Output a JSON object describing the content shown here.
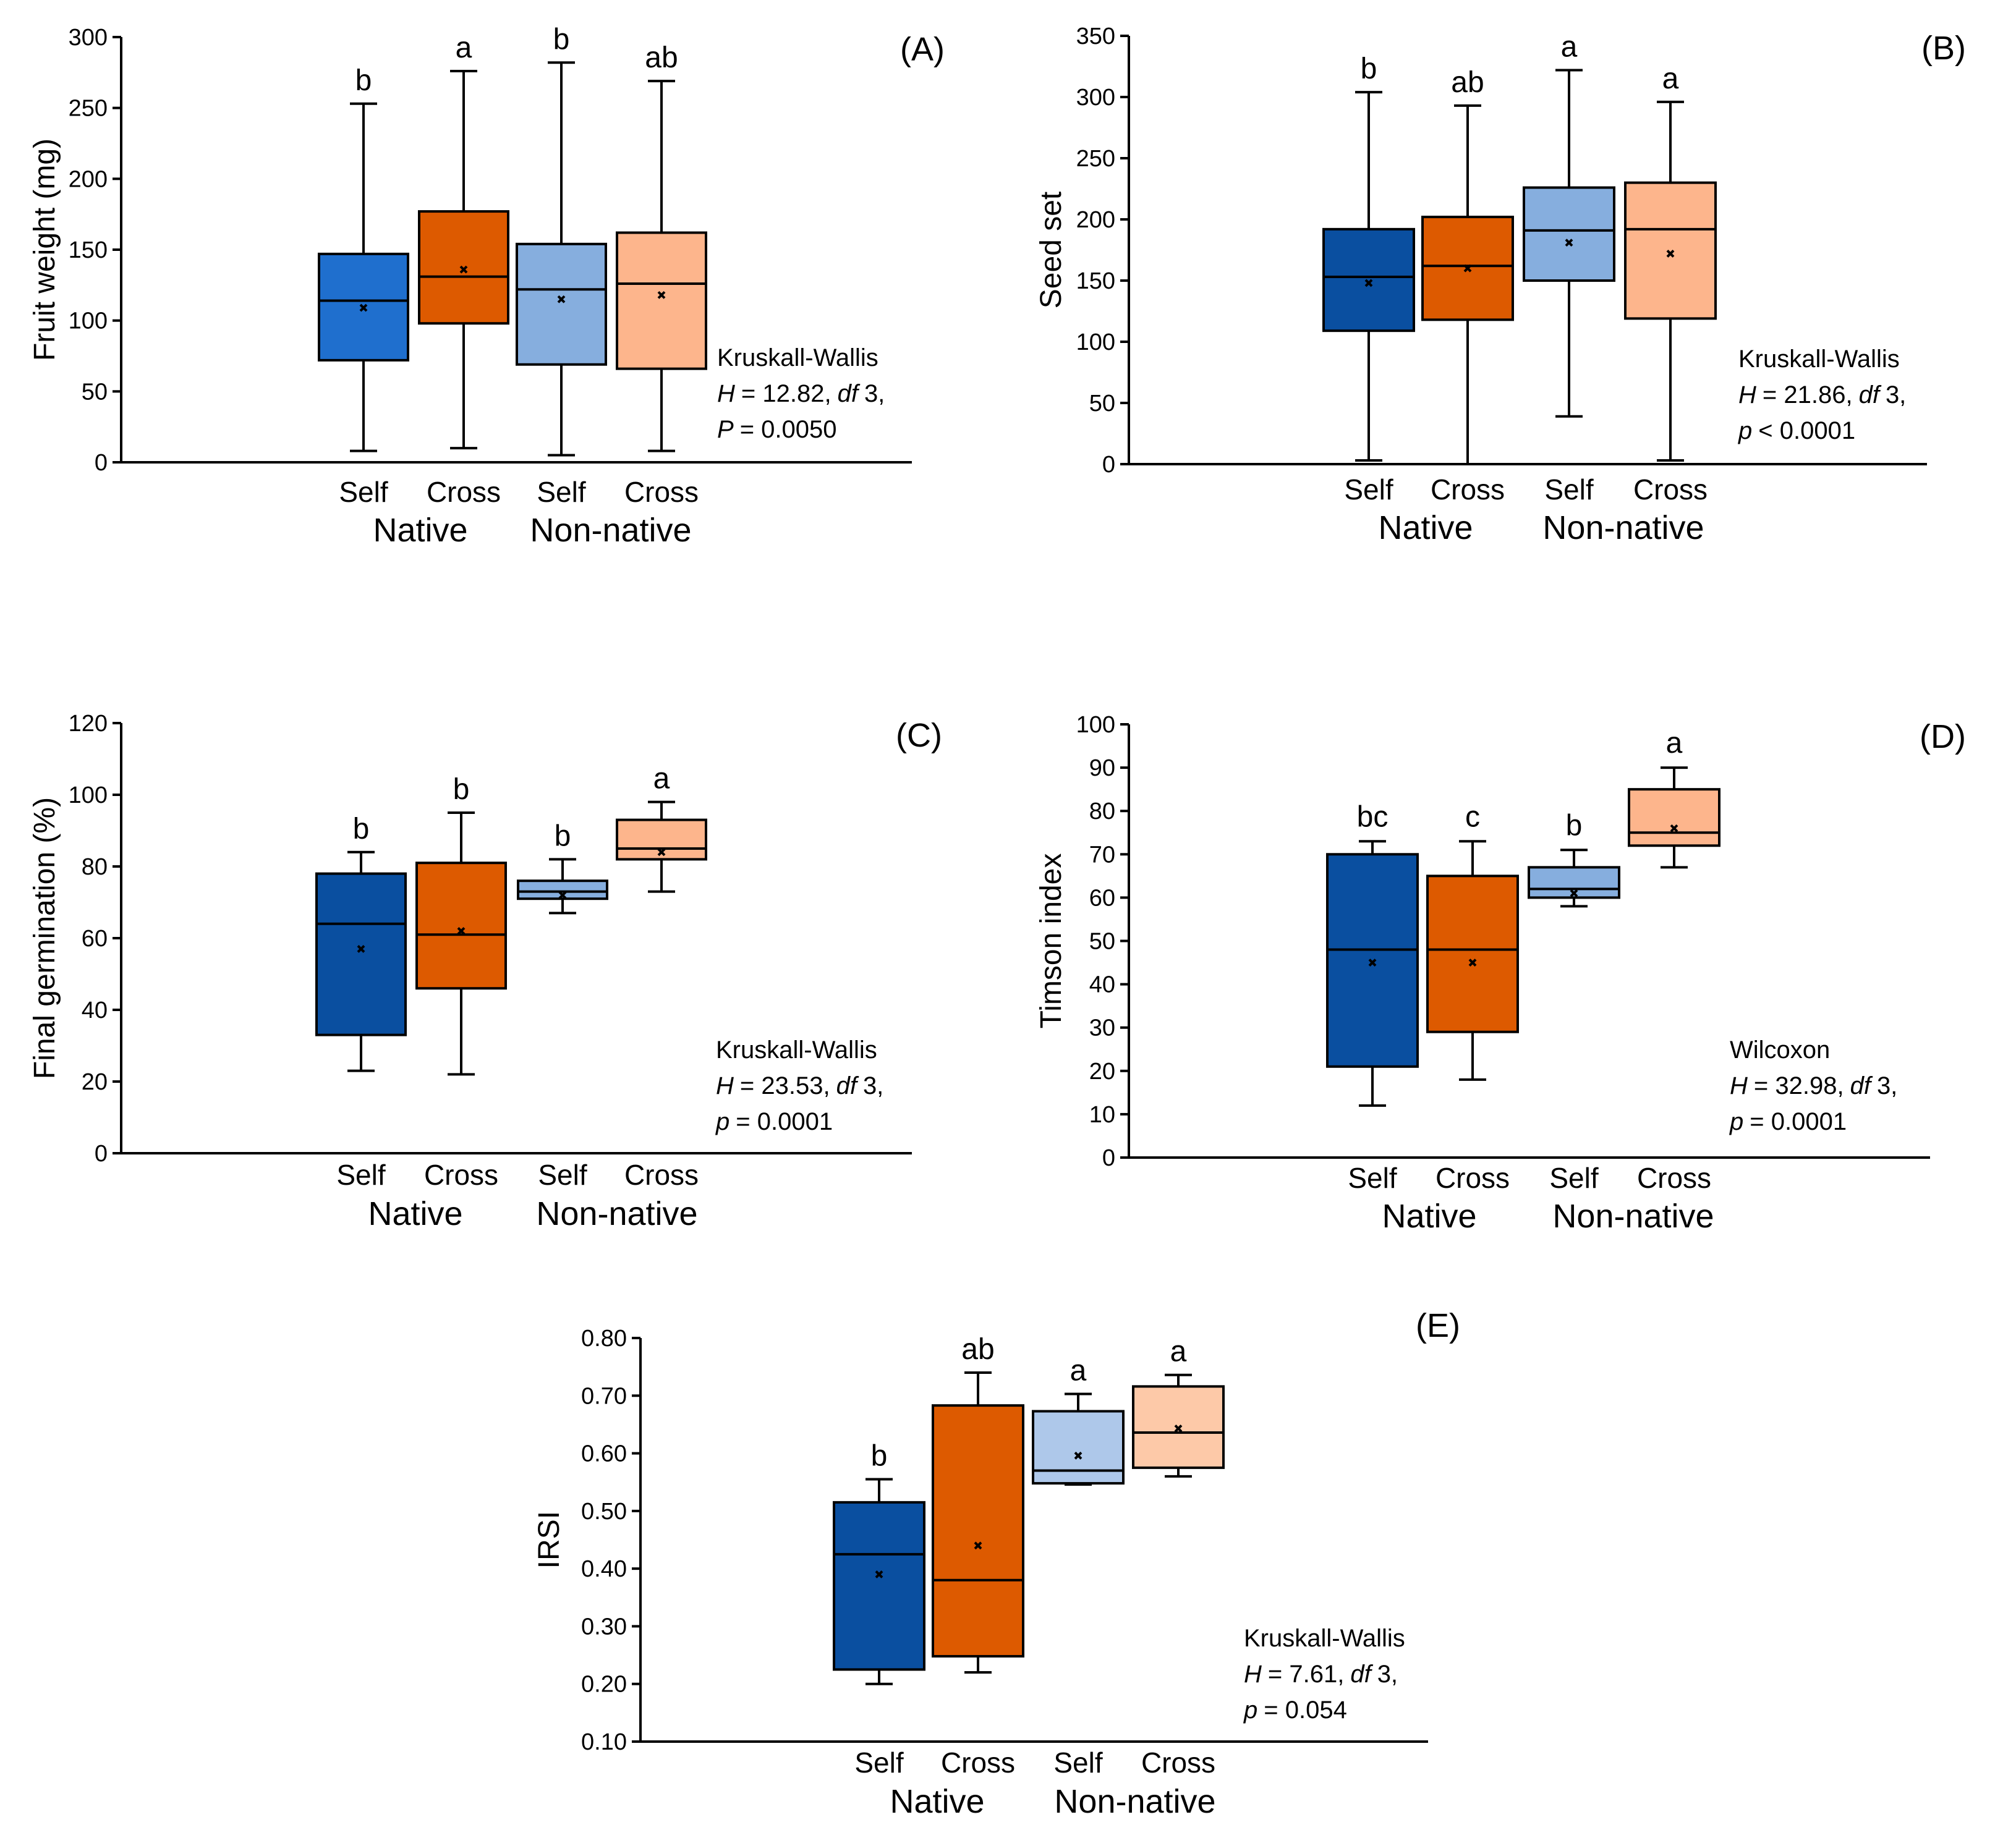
{
  "chart_data": [
    {
      "id": "A",
      "type": "box",
      "panel_label": "(A)",
      "ylabel": "Fruit weight (mg)",
      "ylim": [
        0,
        300
      ],
      "yticks": [
        0,
        50,
        100,
        150,
        200,
        250,
        300
      ],
      "categories": [
        "Self",
        "Cross",
        "Self",
        "Cross"
      ],
      "groups": [
        "Native",
        "Non-native"
      ],
      "boxes": [
        {
          "category": "Self",
          "group": "Native",
          "color": "#1f6fce",
          "min": 8,
          "q1": 72,
          "median": 114,
          "q3": 147,
          "max": 253,
          "mean": 109,
          "letter": "b"
        },
        {
          "category": "Cross",
          "group": "Native",
          "color": "#dd5a00",
          "min": 10,
          "q1": 98,
          "median": 131,
          "q3": 177,
          "max": 276,
          "mean": 136,
          "letter": "a"
        },
        {
          "category": "Self",
          "group": "Non-native",
          "color": "#86aede",
          "min": 5,
          "q1": 69,
          "median": 122,
          "q3": 154,
          "max": 282,
          "mean": 115,
          "letter": "b"
        },
        {
          "category": "Cross",
          "group": "Non-native",
          "color": "#fdb58c",
          "min": 8,
          "q1": 66,
          "median": 126,
          "q3": 162,
          "max": 269,
          "mean": 118,
          "letter": "ab"
        }
      ],
      "stats": {
        "test": "Kruskall-Wallis",
        "H_label": "H",
        "H_value": "= 12.82,",
        "df_label": "df",
        "df_value": "3,",
        "p_label": "P",
        "p_value": "= 0.0050"
      }
    },
    {
      "id": "B",
      "type": "box",
      "panel_label": "(B)",
      "ylabel": "Seed set",
      "ylim": [
        0,
        350
      ],
      "yticks": [
        0,
        50,
        100,
        150,
        200,
        250,
        300,
        350
      ],
      "categories": [
        "Self",
        "Cross",
        "Self",
        "Cross"
      ],
      "groups": [
        "Native",
        "Non-native"
      ],
      "boxes": [
        {
          "category": "Self",
          "group": "Native",
          "color": "#0a4fa0",
          "min": 3,
          "q1": 109,
          "median": 153,
          "q3": 192,
          "max": 304,
          "mean": 148,
          "letter": "b"
        },
        {
          "category": "Cross",
          "group": "Native",
          "color": "#dd5a00",
          "min": 0,
          "q1": 118,
          "median": 162,
          "q3": 202,
          "max": 293,
          "mean": 160,
          "letter": "ab"
        },
        {
          "category": "Self",
          "group": "Non-native",
          "color": "#86aede",
          "min": 39,
          "q1": 150,
          "median": 191,
          "q3": 226,
          "max": 322,
          "mean": 181,
          "letter": "a"
        },
        {
          "category": "Cross",
          "group": "Non-native",
          "color": "#fdb58c",
          "min": 3,
          "q1": 119,
          "median": 192,
          "q3": 230,
          "max": 296,
          "mean": 172,
          "letter": "a"
        }
      ],
      "stats": {
        "test": "Kruskall-Wallis",
        "H_label": "H",
        "H_value": "= 21.86,",
        "df_label": "df",
        "df_value": "3,",
        "p_label": "p",
        "p_value": "< 0.0001"
      }
    },
    {
      "id": "C",
      "type": "box",
      "panel_label": "(C)",
      "ylabel": "Final germination (%)",
      "ylim": [
        0,
        120
      ],
      "yticks": [
        0,
        20,
        40,
        60,
        80,
        100,
        120
      ],
      "categories": [
        "Self",
        "Cross",
        "Self",
        "Cross"
      ],
      "groups": [
        "Native",
        "Non-native"
      ],
      "boxes": [
        {
          "category": "Self",
          "group": "Native",
          "color": "#0a4fa0",
          "min": 23,
          "q1": 33,
          "median": 64,
          "q3": 78,
          "max": 84,
          "mean": 57,
          "letter": "b"
        },
        {
          "category": "Cross",
          "group": "Native",
          "color": "#dd5a00",
          "min": 22,
          "q1": 46,
          "median": 61,
          "q3": 81,
          "max": 95,
          "mean": 62,
          "letter": "b"
        },
        {
          "category": "Self",
          "group": "Non-native",
          "color": "#86aede",
          "min": 67,
          "q1": 71,
          "median": 73,
          "q3": 76,
          "max": 82,
          "mean": 72,
          "letter": "b"
        },
        {
          "category": "Cross",
          "group": "Non-native",
          "color": "#fdb58c",
          "min": 73,
          "q1": 82,
          "median": 85,
          "q3": 93,
          "max": 98,
          "mean": 84,
          "letter": "a"
        }
      ],
      "stats": {
        "test": "Kruskall-Wallis",
        "H_label": "H",
        "H_value": "= 23.53,",
        "df_label": "df",
        "df_value": "3,",
        "p_label": "p",
        "p_value": "= 0.0001"
      }
    },
    {
      "id": "D",
      "type": "box",
      "panel_label": "(D)",
      "ylabel": "Timson index",
      "ylim": [
        0,
        100
      ],
      "yticks": [
        0,
        10,
        20,
        30,
        40,
        50,
        60,
        70,
        80,
        90,
        100
      ],
      "categories": [
        "Self",
        "Cross",
        "Self",
        "Cross"
      ],
      "groups": [
        "Native",
        "Non-native"
      ],
      "boxes": [
        {
          "category": "Self",
          "group": "Native",
          "color": "#0a4fa0",
          "min": 12,
          "q1": 21,
          "median": 48,
          "q3": 70,
          "max": 73,
          "mean": 45,
          "letter": "bc"
        },
        {
          "category": "Cross",
          "group": "Native",
          "color": "#dd5a00",
          "min": 18,
          "q1": 29,
          "median": 48,
          "q3": 65,
          "max": 73,
          "mean": 45,
          "letter": "c"
        },
        {
          "category": "Self",
          "group": "Non-native",
          "color": "#86aede",
          "min": 58,
          "q1": 60,
          "median": 62,
          "q3": 67,
          "max": 71,
          "mean": 61,
          "letter": "b"
        },
        {
          "category": "Cross",
          "group": "Non-native",
          "color": "#fdb58c",
          "min": 67,
          "q1": 72,
          "median": 75,
          "q3": 85,
          "max": 90,
          "mean": 76,
          "letter": "a"
        }
      ],
      "stats": {
        "test": "Wilcoxon",
        "H_label": "H",
        "H_value": "= 32.98,",
        "df_label": "df",
        "df_value": "3,",
        "p_label": "p",
        "p_value": "= 0.0001"
      }
    },
    {
      "id": "E",
      "type": "box",
      "panel_label": "(E)",
      "ylabel": "IRSI",
      "ylim": [
        0.1,
        0.8
      ],
      "yticks": [
        "0.10",
        "0.20",
        "0.30",
        "0.40",
        "0.50",
        "0.60",
        "0.70",
        "0.80"
      ],
      "categories": [
        "Self",
        "Cross",
        "Self",
        "Cross"
      ],
      "groups": [
        "Native",
        "Non-native"
      ],
      "boxes": [
        {
          "category": "Self",
          "group": "Native",
          "color": "#0a4fa0",
          "min": 0.2,
          "q1": 0.225,
          "median": 0.425,
          "q3": 0.515,
          "max": 0.555,
          "mean": 0.39,
          "letter": "b"
        },
        {
          "category": "Cross",
          "group": "Native",
          "color": "#dd5a00",
          "min": 0.22,
          "q1": 0.248,
          "median": 0.38,
          "q3": 0.683,
          "max": 0.74,
          "mean": 0.44,
          "letter": "ab"
        },
        {
          "category": "Self",
          "group": "Non-native",
          "color": "#aec8ea",
          "min": 0.546,
          "q1": 0.548,
          "median": 0.57,
          "q3": 0.673,
          "max": 0.703,
          "mean": 0.596,
          "letter": "a"
        },
        {
          "category": "Cross",
          "group": "Non-native",
          "color": "#fdc9a8",
          "min": 0.56,
          "q1": 0.575,
          "median": 0.636,
          "q3": 0.716,
          "max": 0.736,
          "mean": 0.643,
          "letter": "a"
        }
      ],
      "stats": {
        "test": "Kruskall-Wallis",
        "H_label": "H",
        "H_value": "= 7.61,",
        "df_label": "df",
        "df_value": "3,",
        "p_label": "p",
        "p_value": "= 0.054"
      }
    }
  ]
}
